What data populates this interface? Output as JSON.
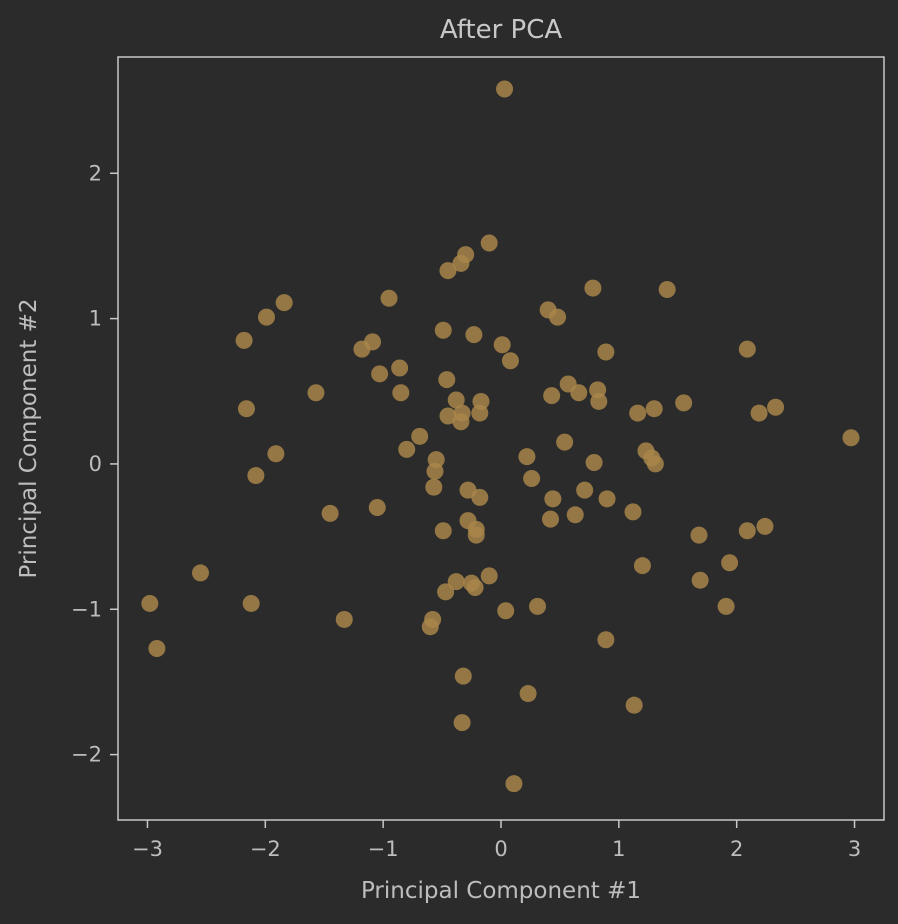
{
  "chart_data": {
    "type": "scatter",
    "title": "After PCA",
    "xlabel": "Principal Component #1",
    "ylabel": "Principal Component #2",
    "xlim": [
      -3.25,
      3.25
    ],
    "ylim": [
      -2.45,
      2.8
    ],
    "xticks": [
      -3,
      -2,
      -1,
      0,
      1,
      2,
      3
    ],
    "yticks": [
      -2,
      -1,
      0,
      1,
      2
    ],
    "xtick_labels": [
      "−3",
      "−2",
      "−1",
      "0",
      "1",
      "2",
      "3"
    ],
    "ytick_labels": [
      "−2",
      "−1",
      "0",
      "1",
      "2"
    ],
    "grid": false,
    "marker_color": "#a8854a",
    "marker_opacity": 0.85,
    "background_color": "#2b2b2b",
    "series": [
      {
        "x": [
          0.03,
          -0.1,
          -0.3,
          -0.34,
          -0.45,
          -0.95,
          -1.84,
          -1.99,
          -2.18,
          -1.09,
          -1.18,
          -0.86,
          -1.03,
          -0.85,
          -1.57,
          -2.16,
          -0.49,
          -0.23,
          0.01,
          0.08,
          0.4,
          0.48,
          0.78,
          1.41,
          0.89,
          0.57,
          0.66,
          0.82,
          0.43,
          0.83,
          1.55,
          1.16,
          1.3,
          2.09,
          2.19,
          2.33,
          2.97,
          -0.46,
          -0.38,
          -0.17,
          -0.45,
          -0.33,
          -0.34,
          -0.18,
          -0.69,
          -0.8,
          -0.55,
          -0.56,
          -0.57,
          -1.91,
          -2.08,
          -0.28,
          -0.18,
          -1.45,
          -1.05,
          -0.49,
          -0.28,
          -0.21,
          -0.21,
          0.22,
          0.26,
          0.54,
          0.79,
          1.23,
          1.28,
          1.31,
          0.71,
          0.9,
          0.44,
          0.42,
          0.63,
          1.12,
          1.68,
          2.09,
          2.24,
          1.2,
          1.69,
          1.94,
          1.91,
          -2.55,
          -2.98,
          -2.92,
          -2.12,
          -1.33,
          -0.6,
          -0.58,
          -0.47,
          -0.38,
          -0.22,
          -0.1,
          -0.25,
          0.04,
          0.31,
          0.89,
          -0.32,
          -0.33,
          0.23,
          1.13,
          0.11
        ],
        "y": [
          2.58,
          1.52,
          1.44,
          1.38,
          1.33,
          1.14,
          1.11,
          1.01,
          0.85,
          0.84,
          0.79,
          0.66,
          0.62,
          0.49,
          0.49,
          0.38,
          0.92,
          0.89,
          0.82,
          0.71,
          1.06,
          1.01,
          1.21,
          1.2,
          0.77,
          0.55,
          0.49,
          0.51,
          0.47,
          0.43,
          0.42,
          0.35,
          0.38,
          0.79,
          0.35,
          0.39,
          0.18,
          0.58,
          0.44,
          0.43,
          0.33,
          0.35,
          0.29,
          0.35,
          0.19,
          0.1,
          0.03,
          -0.05,
          -0.16,
          0.07,
          -0.08,
          -0.18,
          -0.23,
          -0.34,
          -0.3,
          -0.46,
          -0.39,
          -0.45,
          -0.49,
          0.05,
          -0.1,
          0.15,
          0.01,
          0.09,
          0.04,
          0.0,
          -0.18,
          -0.24,
          -0.24,
          -0.38,
          -0.35,
          -0.33,
          -0.49,
          -0.46,
          -0.43,
          -0.7,
          -0.8,
          -0.68,
          -0.98,
          -0.75,
          -0.96,
          -1.27,
          -0.96,
          -1.07,
          -1.12,
          -1.07,
          -0.88,
          -0.81,
          -0.85,
          -0.77,
          -0.82,
          -1.01,
          -0.98,
          -1.21,
          -1.46,
          -1.78,
          -1.58,
          -1.66,
          -2.2
        ]
      }
    ]
  }
}
